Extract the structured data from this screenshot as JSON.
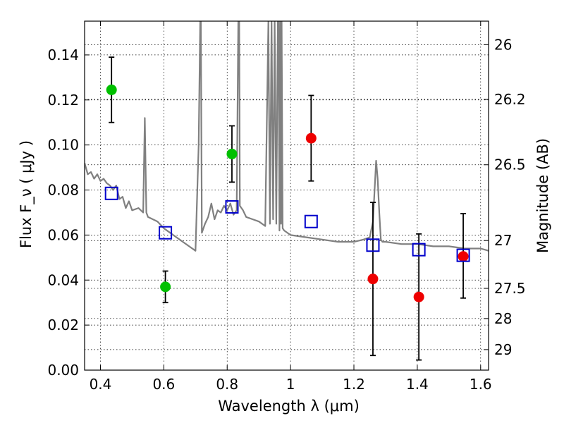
{
  "chart_data": {
    "type": "scatter",
    "xlabel": "Wavelength  λ (μm)",
    "ylabel": "Flux  F_ν  ( μJy )",
    "y2label": "Magnitude (AB)",
    "xlim": [
      0.35,
      1.625
    ],
    "ylim": [
      0.0,
      0.155
    ],
    "grid": true,
    "x_ticks": [
      0.4,
      0.6,
      0.8,
      1.0,
      1.2,
      1.4,
      1.6
    ],
    "x_tick_labels": [
      "0.4",
      "0.6",
      "0.8",
      "1",
      "1.2",
      "1.4",
      "1.6"
    ],
    "y_ticks": [
      0.0,
      0.02,
      0.04,
      0.06,
      0.08,
      0.1,
      0.12,
      0.14
    ],
    "y_tick_labels": [
      "0.00",
      "0.02",
      "0.04",
      "0.06",
      "0.08",
      "0.10",
      "0.12",
      "0.14"
    ],
    "y2_ticks": [
      26,
      26.2,
      26.5,
      27,
      27.5,
      28,
      29
    ],
    "y2_tick_labels": [
      "26",
      "26.2",
      "26.5",
      "27",
      "27.5",
      "28",
      "29"
    ],
    "series": [
      {
        "kind": "line",
        "color": "#808080",
        "x": [
          0.35,
          0.36,
          0.37,
          0.38,
          0.39,
          0.4,
          0.41,
          0.42,
          0.43,
          0.44,
          0.45,
          0.46,
          0.47,
          0.48,
          0.49,
          0.5,
          0.52,
          0.535,
          0.54,
          0.545,
          0.55,
          0.58,
          0.6,
          0.62,
          0.64,
          0.66,
          0.68,
          0.7,
          0.71,
          0.715,
          0.717,
          0.72,
          0.73,
          0.74,
          0.75,
          0.76,
          0.77,
          0.78,
          0.79,
          0.8,
          0.81,
          0.82,
          0.83,
          0.835,
          0.838,
          0.84,
          0.85,
          0.86,
          0.88,
          0.9,
          0.92,
          0.93,
          0.935,
          0.94,
          0.945,
          0.95,
          0.955,
          0.96,
          0.962,
          0.965,
          0.967,
          0.97,
          0.972,
          0.975,
          0.98,
          1.0,
          1.05,
          1.1,
          1.15,
          1.2,
          1.23,
          1.25,
          1.26,
          1.27,
          1.275,
          1.28,
          1.285,
          1.29,
          1.3,
          1.35,
          1.4,
          1.45,
          1.5,
          1.55,
          1.6,
          1.625
        ],
        "y": [
          0.092,
          0.087,
          0.088,
          0.085,
          0.087,
          0.084,
          0.085,
          0.083,
          0.082,
          0.08,
          0.082,
          0.076,
          0.077,
          0.072,
          0.075,
          0.071,
          0.072,
          0.07,
          0.112,
          0.07,
          0.068,
          0.066,
          0.063,
          0.061,
          0.059,
          0.057,
          0.055,
          0.053,
          0.1,
          0.155,
          0.155,
          0.061,
          0.065,
          0.068,
          0.074,
          0.067,
          0.071,
          0.07,
          0.073,
          0.071,
          0.074,
          0.069,
          0.071,
          0.155,
          0.155,
          0.073,
          0.071,
          0.068,
          0.067,
          0.066,
          0.064,
          0.155,
          0.065,
          0.155,
          0.067,
          0.155,
          0.065,
          0.155,
          0.155,
          0.062,
          0.155,
          0.065,
          0.155,
          0.063,
          0.062,
          0.06,
          0.059,
          0.058,
          0.057,
          0.057,
          0.058,
          0.059,
          0.066,
          0.093,
          0.085,
          0.07,
          0.058,
          0.057,
          0.057,
          0.056,
          0.056,
          0.055,
          0.055,
          0.054,
          0.054,
          0.053
        ]
      },
      {
        "kind": "points",
        "marker": "circle",
        "color": "#00c000",
        "x": [
          0.435,
          0.605,
          0.815
        ],
        "y": [
          0.1245,
          0.037,
          0.096
        ],
        "err_low": [
          0.0145,
          0.007,
          0.0125
        ],
        "err_high": [
          0.0145,
          0.007,
          0.0125
        ]
      },
      {
        "kind": "points",
        "marker": "circle",
        "color": "#ee0000",
        "x": [
          1.065,
          1.26,
          1.405,
          1.545
        ],
        "y": [
          0.103,
          0.0405,
          0.0325,
          0.0505
        ],
        "err_low": [
          0.019,
          0.034,
          0.028,
          0.0185
        ],
        "err_high": [
          0.019,
          0.034,
          0.028,
          0.019
        ]
      },
      {
        "kind": "points",
        "marker": "square-open",
        "color": "#0000cc",
        "x": [
          0.435,
          0.605,
          0.815,
          1.065,
          1.26,
          1.405,
          1.545
        ],
        "y": [
          0.0785,
          0.061,
          0.0725,
          0.066,
          0.0555,
          0.0535,
          0.051
        ]
      }
    ]
  }
}
